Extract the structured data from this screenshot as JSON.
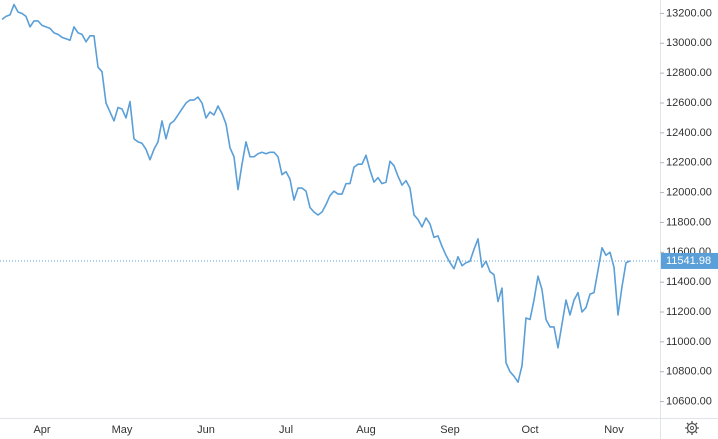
{
  "chart_data": {
    "type": "line",
    "categories": [
      null,
      null,
      null,
      null,
      null,
      null,
      null,
      null,
      null,
      null,
      "Apr",
      null,
      null,
      null,
      null,
      null,
      null,
      null,
      null,
      null,
      null,
      null,
      null,
      null,
      null,
      null,
      null,
      null,
      null,
      null,
      "May",
      null,
      null,
      null,
      null,
      null,
      null,
      null,
      null,
      null,
      null,
      null,
      null,
      null,
      null,
      null,
      null,
      null,
      null,
      null,
      null,
      "Jun",
      null,
      null,
      null,
      null,
      null,
      null,
      null,
      null,
      null,
      null,
      null,
      null,
      null,
      null,
      null,
      null,
      null,
      null,
      null,
      "Jul",
      null,
      null,
      null,
      null,
      null,
      null,
      null,
      null,
      null,
      null,
      null,
      null,
      null,
      null,
      null,
      null,
      null,
      null,
      null,
      "Aug",
      null,
      null,
      null,
      null,
      null,
      null,
      null,
      null,
      null,
      null,
      null,
      null,
      null,
      null,
      null,
      null,
      null,
      null,
      null,
      null,
      "Sep",
      null,
      null,
      null,
      null,
      null,
      null,
      null,
      null,
      null,
      null,
      null,
      null,
      null,
      null,
      null,
      null,
      null,
      null,
      null,
      "Oct",
      null,
      null,
      null,
      null,
      null,
      null,
      null,
      null,
      null,
      null,
      null,
      null,
      null,
      null,
      null,
      null,
      null,
      null,
      null,
      null,
      "Nov",
      null,
      null,
      null,
      null
    ],
    "series": [
      {
        "color": "#5a9fd8",
        "values": [
          13160,
          13180,
          13190,
          13260,
          13210,
          13200,
          13180,
          13110,
          13150,
          13150,
          13120,
          13110,
          13100,
          13070,
          13060,
          13040,
          13030,
          13020,
          13110,
          13070,
          13060,
          13010,
          13050,
          13050,
          12840,
          12810,
          12600,
          12540,
          12480,
          12570,
          12560,
          12500,
          12610,
          12360,
          12340,
          12330,
          12290,
          12220,
          12290,
          12340,
          12480,
          12360,
          12460,
          12480,
          12520,
          12560,
          12600,
          12620,
          12620,
          12640,
          12600,
          12500,
          12540,
          12520,
          12580,
          12530,
          12460,
          12300,
          12240,
          12020,
          12190,
          12340,
          12240,
          12240,
          12260,
          12270,
          12260,
          12270,
          12270,
          12240,
          12120,
          12140,
          12090,
          11950,
          12030,
          12030,
          12010,
          11900,
          11870,
          11850,
          11870,
          11920,
          11980,
          12010,
          11990,
          11990,
          12060,
          12060,
          12170,
          12190,
          12190,
          12250,
          12150,
          12070,
          12100,
          12060,
          12070,
          12210,
          12180,
          12110,
          12050,
          12080,
          12030,
          11850,
          11820,
          11770,
          11830,
          11790,
          11700,
          11710,
          11640,
          11580,
          11530,
          11490,
          11570,
          11510,
          11530,
          11540,
          11620,
          11690,
          11500,
          11540,
          11470,
          11450,
          11270,
          11360,
          10860,
          10800,
          10770,
          10730,
          10840,
          11160,
          11150,
          11280,
          11440,
          11350,
          11150,
          11100,
          11100,
          10960,
          11120,
          11280,
          11180,
          11280,
          11330,
          11200,
          11230,
          11320,
          11330,
          11480,
          11630,
          11580,
          11600,
          11500,
          11180,
          11370,
          11530,
          11541.98
        ]
      }
    ],
    "ylim": [
      10490,
      13290
    ],
    "yticks": [
      {
        "value": 10600,
        "label": "10600.00"
      },
      {
        "value": 10800,
        "label": "10800.00"
      },
      {
        "value": 11000,
        "label": "11000.00"
      },
      {
        "value": 11200,
        "label": "11200.00"
      },
      {
        "value": 11400,
        "label": "11400.00"
      },
      {
        "value": 11600,
        "label": "11600.00"
      },
      {
        "value": 11800,
        "label": "11800.00"
      },
      {
        "value": 12000,
        "label": "12000.00"
      },
      {
        "value": 12200,
        "label": "12200.00"
      },
      {
        "value": 12400,
        "label": "12400.00"
      },
      {
        "value": 12600,
        "label": "12600.00"
      },
      {
        "value": 12800,
        "label": "12800.00"
      },
      {
        "value": 13000,
        "label": "13000.00"
      },
      {
        "value": 13200,
        "label": "13200.00"
      }
    ],
    "grid": false
  }
}
